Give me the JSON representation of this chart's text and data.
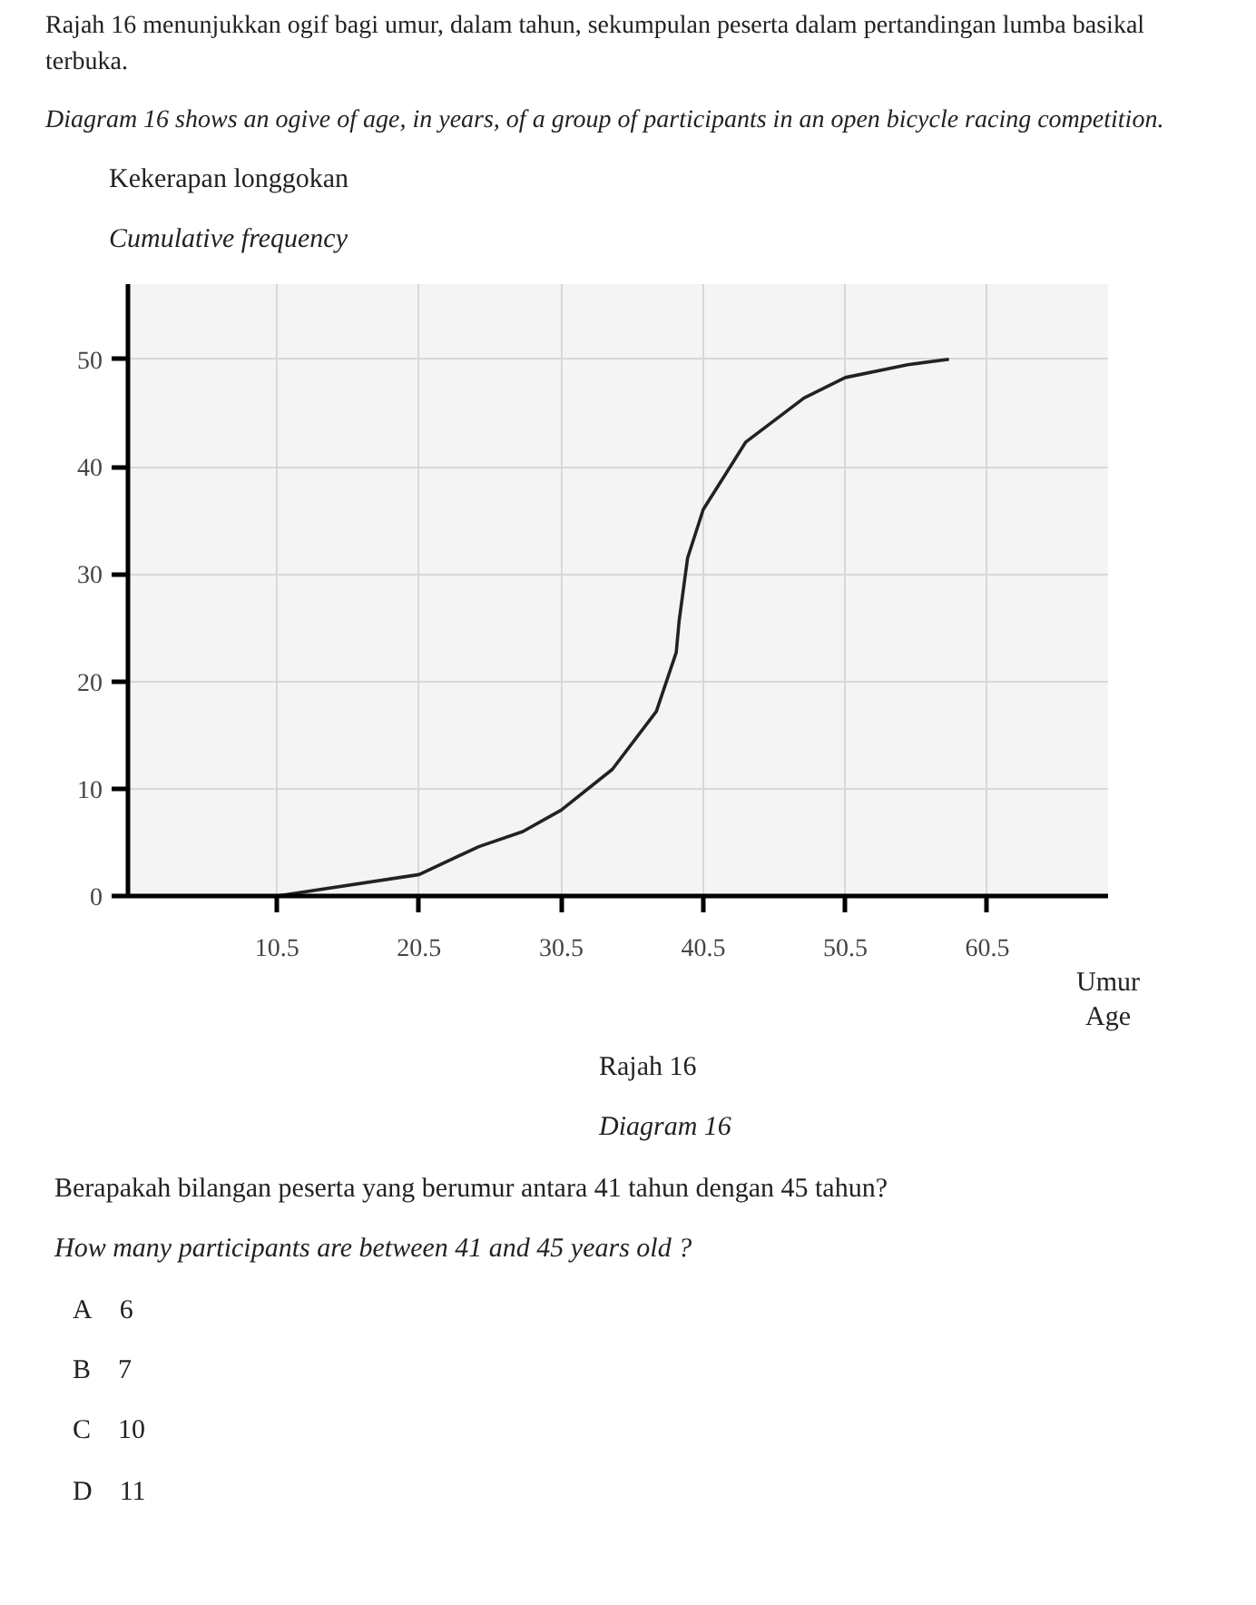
{
  "chart_data": {
    "type": "line",
    "title": "Rajah 16 menunjukkan ogif bagi umur, dalam tahun, sekumpulan peserta dalam pertandingan lumba basikal terbuka.",
    "subtitle": "Diagram 16 shows an ogive of age, in years, of a group of participants in an open bicycle racing competition.",
    "ylabel": "Kekerapan longgokan\nCumulative frequency",
    "xlabel": "Umur\nAge",
    "x": [
      10.5,
      20.5,
      24.7,
      27.8,
      30.5,
      34.1,
      37.2,
      38.6,
      38.8,
      39.4,
      40.5,
      43.5,
      47.6,
      50.5,
      54.9,
      57.8
    ],
    "series": [
      {
        "color": "#222222",
        "values": [
          0,
          2,
          4.6,
          6,
          8,
          11.8,
          17.2,
          22.7,
          25.6,
          31.5,
          36,
          42.3,
          46.4,
          48.3,
          49.5,
          50
        ]
      }
    ],
    "xlim": [
      0,
      69
    ],
    "ylim": [
      0,
      57
    ],
    "xticks": [
      10.5,
      20.5,
      30.5,
      40.5,
      50.5,
      60.5
    ],
    "yticks": [
      0,
      10,
      20,
      30,
      40,
      50
    ],
    "grid": true,
    "marker": "none",
    "line_style": "solid",
    "annotations": [
      "Rajah 16",
      "Diagram 16",
      "Berapakah bilangan peserta yang berumur antara 41 tahun dengan 45 tahun?",
      "How many participants are between 41 and 45 years old ?",
      "A 6",
      "B 7",
      "C 10",
      "D 11"
    ]
  }
}
